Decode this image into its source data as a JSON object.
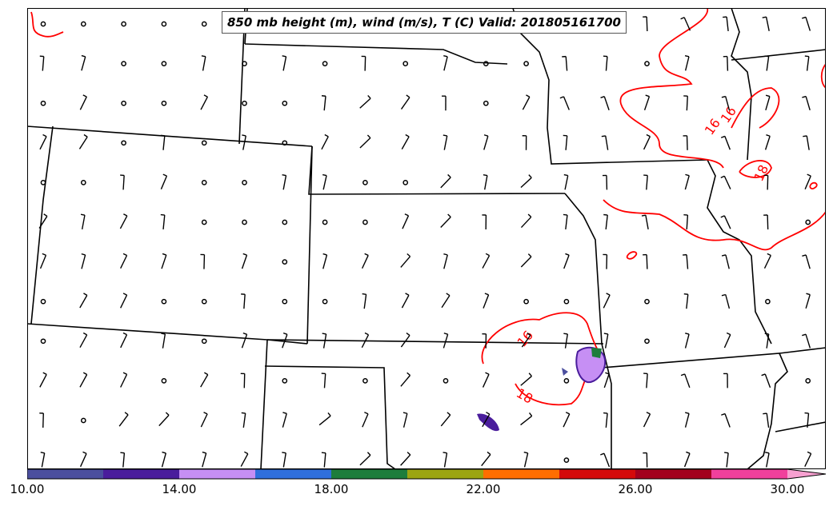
{
  "map": {
    "title": "850 mb height (m), wind (m/s), T (C) Valid: 201805161700",
    "isotherm_color": "#ff0000",
    "isotherm_labels": [
      "16",
      "16",
      "16",
      "18",
      "18"
    ],
    "boundary_color": "#000000",
    "station_marker": "calm-circle",
    "wind_symbol": "wind-barb"
  },
  "colorbar": {
    "tick_labels": [
      "10.00",
      "14.00",
      "18.00",
      "22.00",
      "26.00",
      "30.00"
    ],
    "colors": [
      "#4b4f9e",
      "#4a1d9c",
      "#c68ff4",
      "#2f6fdc",
      "#1e7d3c",
      "#9ca511",
      "#ff6e00",
      "#d40a0a",
      "#a3001e",
      "#f0409c",
      "#f7a0d0"
    ]
  }
}
